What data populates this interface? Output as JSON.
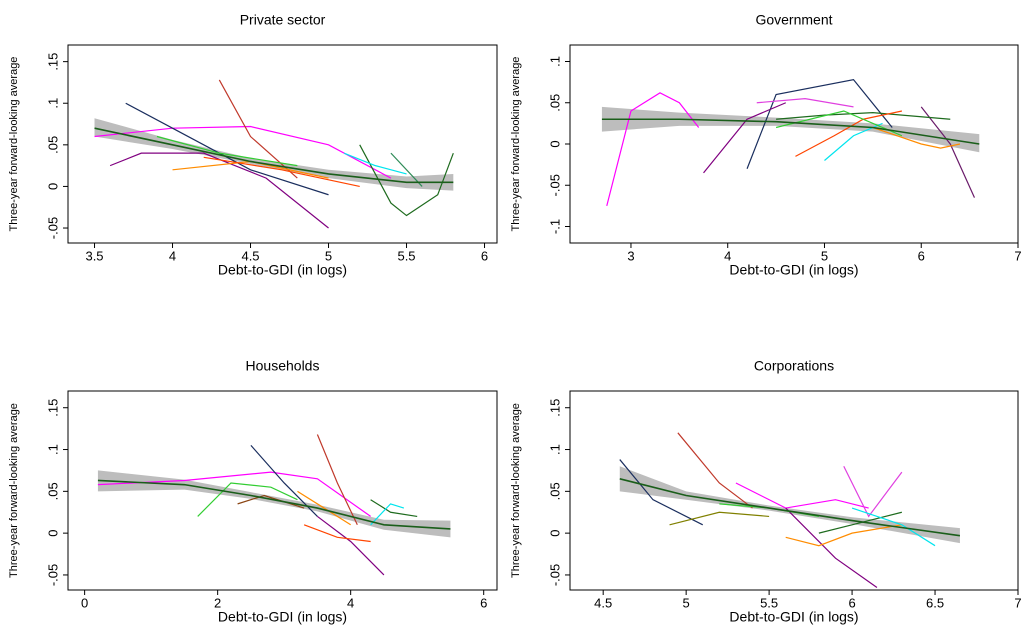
{
  "chart_data": [
    {
      "type": "line",
      "title": "Private sector",
      "xlabel": "Debt-to-GDI (in logs)",
      "ylabel": "Three-year forward-looking average",
      "xlim": [
        3.33,
        6.08
      ],
      "ylim": [
        -0.068,
        0.17
      ],
      "xticks": [
        3.5,
        4,
        4.5,
        5,
        5.5,
        6
      ],
      "yticks": [
        {
          "value": -0.05,
          "label": "-.05"
        },
        0,
        {
          "value": 0.05,
          "label": ".05"
        },
        {
          "value": 0.1,
          "label": ".1"
        },
        {
          "value": 0.15,
          "label": ".15"
        }
      ],
      "fit": {
        "color": "#1a5e1a",
        "band_color": "#bdbdbd",
        "x": [
          3.5,
          4,
          4.5,
          5,
          5.5,
          5.8
        ],
        "values": [
          0.07,
          0.05,
          0.03,
          0.015,
          0.005,
          0.005
        ],
        "lower": [
          0.06,
          0.045,
          0.027,
          0.01,
          -0.002,
          -0.005
        ],
        "upper": [
          0.082,
          0.056,
          0.034,
          0.02,
          0.012,
          0.015
        ]
      },
      "series": [
        {
          "color": "#ff00ff",
          "x": [
            3.5,
            4,
            4.5,
            5,
            5.4
          ],
          "values": [
            0.06,
            0.07,
            0.072,
            0.05,
            0.01
          ]
        },
        {
          "color": "#1a2e5e",
          "x": [
            3.7,
            4,
            4.5,
            5
          ],
          "values": [
            0.1,
            0.07,
            0.02,
            -0.01
          ]
        },
        {
          "color": "#800080",
          "x": [
            3.6,
            3.8,
            4.2,
            4.6,
            5
          ],
          "values": [
            0.025,
            0.04,
            0.04,
            0.01,
            -0.05
          ]
        },
        {
          "color": "#c0392b",
          "x": [
            4.3,
            4.5,
            4.8
          ],
          "values": [
            0.128,
            0.06,
            0.01
          ]
        },
        {
          "color": "#1e6b1e",
          "x": [
            5.2,
            5.4,
            5.5,
            5.7,
            5.8
          ],
          "values": [
            0.05,
            -0.02,
            -0.035,
            -0.01,
            0.04
          ]
        },
        {
          "color": "#00e5ee",
          "x": [
            5.1,
            5.3,
            5.5
          ],
          "values": [
            0.04,
            0.025,
            0.015
          ]
        },
        {
          "color": "#ff8c00",
          "x": [
            4,
            4.5,
            5
          ],
          "values": [
            0.02,
            0.03,
            0.01
          ]
        },
        {
          "color": "#32cd32",
          "x": [
            3.9,
            4.3,
            4.8
          ],
          "values": [
            0.06,
            0.04,
            0.025
          ]
        },
        {
          "color": "#2e8b57",
          "x": [
            5.4,
            5.6
          ],
          "values": [
            0.04,
            0.0
          ]
        },
        {
          "color": "#ff4500",
          "x": [
            4.2,
            4.7,
            5.2
          ],
          "values": [
            0.035,
            0.02,
            0.0
          ]
        }
      ]
    },
    {
      "type": "line",
      "title": "Government",
      "xlabel": "Debt-to-GDI (in logs)",
      "ylabel": "Three-year forward-looking average",
      "xlim": [
        2.37,
        7.0
      ],
      "ylim": [
        -0.12,
        0.12
      ],
      "xticks": [
        3,
        4,
        5,
        6,
        7
      ],
      "yticks": [
        {
          "value": -0.1,
          "label": "-.1"
        },
        {
          "value": -0.05,
          "label": "-.05"
        },
        0,
        {
          "value": 0.05,
          "label": ".05"
        },
        {
          "value": 0.1,
          "label": ".1"
        }
      ],
      "fit": {
        "color": "#1a5e1a",
        "band_color": "#bdbdbd",
        "x": [
          2.7,
          3.5,
          4.5,
          5.5,
          6.6
        ],
        "values": [
          0.03,
          0.03,
          0.027,
          0.02,
          0.0
        ],
        "lower": [
          0.015,
          0.022,
          0.022,
          0.015,
          -0.01
        ],
        "upper": [
          0.045,
          0.038,
          0.032,
          0.025,
          0.012
        ]
      },
      "series": [
        {
          "color": "#ff00ff",
          "x": [
            2.75,
            3,
            3.3,
            3.5,
            3.7
          ],
          "values": [
            -0.075,
            0.04,
            0.062,
            0.05,
            0.02
          ]
        },
        {
          "color": "#1a2e5e",
          "x": [
            4.2,
            4.5,
            5.3,
            5.7
          ],
          "values": [
            -0.03,
            0.06,
            0.078,
            0.02
          ]
        },
        {
          "color": "#e040e0",
          "x": [
            4.3,
            4.8,
            5.3
          ],
          "values": [
            0.05,
            0.055,
            0.045
          ]
        },
        {
          "color": "#800080",
          "x": [
            3.75,
            4.2,
            4.6
          ],
          "values": [
            -0.035,
            0.03,
            0.05
          ]
        },
        {
          "color": "#6a1b6a",
          "x": [
            6,
            6.3,
            6.55
          ],
          "values": [
            0.045,
            0.0,
            -0.065
          ]
        },
        {
          "color": "#1e6b1e",
          "x": [
            4.5,
            5,
            5.5,
            6.3
          ],
          "values": [
            0.03,
            0.035,
            0.038,
            0.03
          ]
        },
        {
          "color": "#ff8c00",
          "x": [
            5.5,
            6,
            6.2,
            6.4
          ],
          "values": [
            0.02,
            0.0,
            -0.005,
            0.0
          ]
        },
        {
          "color": "#ff4500",
          "x": [
            4.7,
            5.1,
            5.4,
            5.8
          ],
          "values": [
            -0.015,
            0.01,
            0.03,
            0.04
          ]
        },
        {
          "color": "#00e5ee",
          "x": [
            5,
            5.3,
            5.6
          ],
          "values": [
            -0.02,
            0.01,
            0.025
          ]
        },
        {
          "color": "#32cd32",
          "x": [
            4.5,
            5.2,
            5.8
          ],
          "values": [
            0.02,
            0.04,
            0.01
          ]
        }
      ]
    },
    {
      "type": "line",
      "title": "Households",
      "xlabel": "Debt-to-GDI (in logs)",
      "ylabel": "Three-year forward-looking average",
      "xlim": [
        -0.25,
        6.2
      ],
      "ylim": [
        -0.068,
        0.17
      ],
      "xticks": [
        0,
        2,
        4,
        6
      ],
      "yticks": [
        {
          "value": -0.05,
          "label": "-.05"
        },
        0,
        {
          "value": 0.05,
          "label": ".05"
        },
        {
          "value": 0.1,
          "label": ".1"
        },
        {
          "value": 0.15,
          "label": ".15"
        }
      ],
      "fit": {
        "color": "#1a5e1a",
        "band_color": "#bdbdbd",
        "x": [
          0.2,
          1.5,
          2.5,
          3.5,
          4.5,
          5.5
        ],
        "values": [
          0.063,
          0.058,
          0.045,
          0.03,
          0.01,
          0.005
        ],
        "lower": [
          0.05,
          0.052,
          0.041,
          0.026,
          0.004,
          -0.005
        ],
        "upper": [
          0.075,
          0.064,
          0.049,
          0.034,
          0.016,
          0.015
        ]
      },
      "series": [
        {
          "color": "#ff00ff",
          "x": [
            0.2,
            1.5,
            2.8,
            3.5,
            4.3
          ],
          "values": [
            0.058,
            0.063,
            0.073,
            0.065,
            0.02
          ]
        },
        {
          "color": "#1a2e5e",
          "x": [
            2.5,
            3,
            3.5
          ],
          "values": [
            0.105,
            0.06,
            0.02
          ]
        },
        {
          "color": "#c0392b",
          "x": [
            3.5,
            3.8,
            4.1
          ],
          "values": [
            0.118,
            0.06,
            0.01
          ]
        },
        {
          "color": "#800080",
          "x": [
            3.5,
            4,
            4.5
          ],
          "values": [
            0.02,
            -0.01,
            -0.05
          ]
        },
        {
          "color": "#32cd32",
          "x": [
            1.7,
            2.2,
            2.8,
            3.2
          ],
          "values": [
            0.02,
            0.06,
            0.055,
            0.04
          ]
        },
        {
          "color": "#1e6b1e",
          "x": [
            4.3,
            4.6,
            5
          ],
          "values": [
            0.04,
            0.025,
            0.02
          ]
        },
        {
          "color": "#00e5ee",
          "x": [
            4.3,
            4.6,
            4.8
          ],
          "values": [
            0.01,
            0.035,
            0.03
          ]
        },
        {
          "color": "#ff8c00",
          "x": [
            3.2,
            3.6,
            4
          ],
          "values": [
            0.05,
            0.03,
            0.01
          ]
        },
        {
          "color": "#8b4513",
          "x": [
            2.3,
            2.7,
            3.3
          ],
          "values": [
            0.035,
            0.045,
            0.03
          ]
        },
        {
          "color": "#ff4500",
          "x": [
            3.3,
            3.8,
            4.3
          ],
          "values": [
            0.01,
            -0.005,
            -0.01
          ]
        }
      ]
    },
    {
      "type": "line",
      "title": "Corporations",
      "xlabel": "Debt-to-GDI (in logs)",
      "ylabel": "Three-year forward-looking average",
      "xlim": [
        4.3,
        7.0
      ],
      "ylim": [
        -0.068,
        0.17
      ],
      "xticks": [
        4.5,
        5,
        5.5,
        6,
        6.5,
        7
      ],
      "yticks": [
        {
          "value": -0.05,
          "label": "-.05"
        },
        0,
        {
          "value": 0.05,
          "label": ".05"
        },
        {
          "value": 0.1,
          "label": ".1"
        },
        {
          "value": 0.15,
          "label": ".15"
        }
      ],
      "fit": {
        "color": "#1a5e1a",
        "band_color": "#bdbdbd",
        "x": [
          4.6,
          5,
          5.5,
          6,
          6.65
        ],
        "values": [
          0.065,
          0.045,
          0.03,
          0.015,
          -0.003
        ],
        "lower": [
          0.05,
          0.04,
          0.027,
          0.011,
          -0.012
        ],
        "upper": [
          0.08,
          0.05,
          0.033,
          0.019,
          0.006
        ]
      },
      "series": [
        {
          "color": "#1a2e5e",
          "x": [
            4.6,
            4.8,
            5.1
          ],
          "values": [
            0.088,
            0.04,
            0.01
          ]
        },
        {
          "color": "#c0392b",
          "x": [
            4.95,
            5.2,
            5.4
          ],
          "values": [
            0.12,
            0.06,
            0.03
          ]
        },
        {
          "color": "#ff00ff",
          "x": [
            5.3,
            5.6,
            5.9,
            6.1
          ],
          "values": [
            0.06,
            0.03,
            0.04,
            0.03
          ]
        },
        {
          "color": "#800080",
          "x": [
            5.6,
            5.9,
            6.15
          ],
          "values": [
            0.03,
            -0.03,
            -0.065
          ]
        },
        {
          "color": "#e040e0",
          "x": [
            5.95,
            6.1,
            6.3
          ],
          "values": [
            0.08,
            0.02,
            0.073
          ]
        },
        {
          "color": "#ff8c00",
          "x": [
            5.6,
            5.8,
            6,
            6.3
          ],
          "values": [
            -0.005,
            -0.015,
            0,
            0.01
          ]
        },
        {
          "color": "#1e6b1e",
          "x": [
            5.8,
            6,
            6.3
          ],
          "values": [
            0.0,
            0.01,
            0.025
          ]
        },
        {
          "color": "#00e5ee",
          "x": [
            6,
            6.3,
            6.5
          ],
          "values": [
            0.03,
            0.01,
            -0.015
          ]
        },
        {
          "color": "#32cd32",
          "x": [
            5.2,
            5.5,
            5.8
          ],
          "values": [
            0.035,
            0.03,
            0.02
          ]
        },
        {
          "color": "#808000",
          "x": [
            4.9,
            5.2,
            5.5
          ],
          "values": [
            0.01,
            0.025,
            0.02
          ]
        }
      ]
    }
  ]
}
